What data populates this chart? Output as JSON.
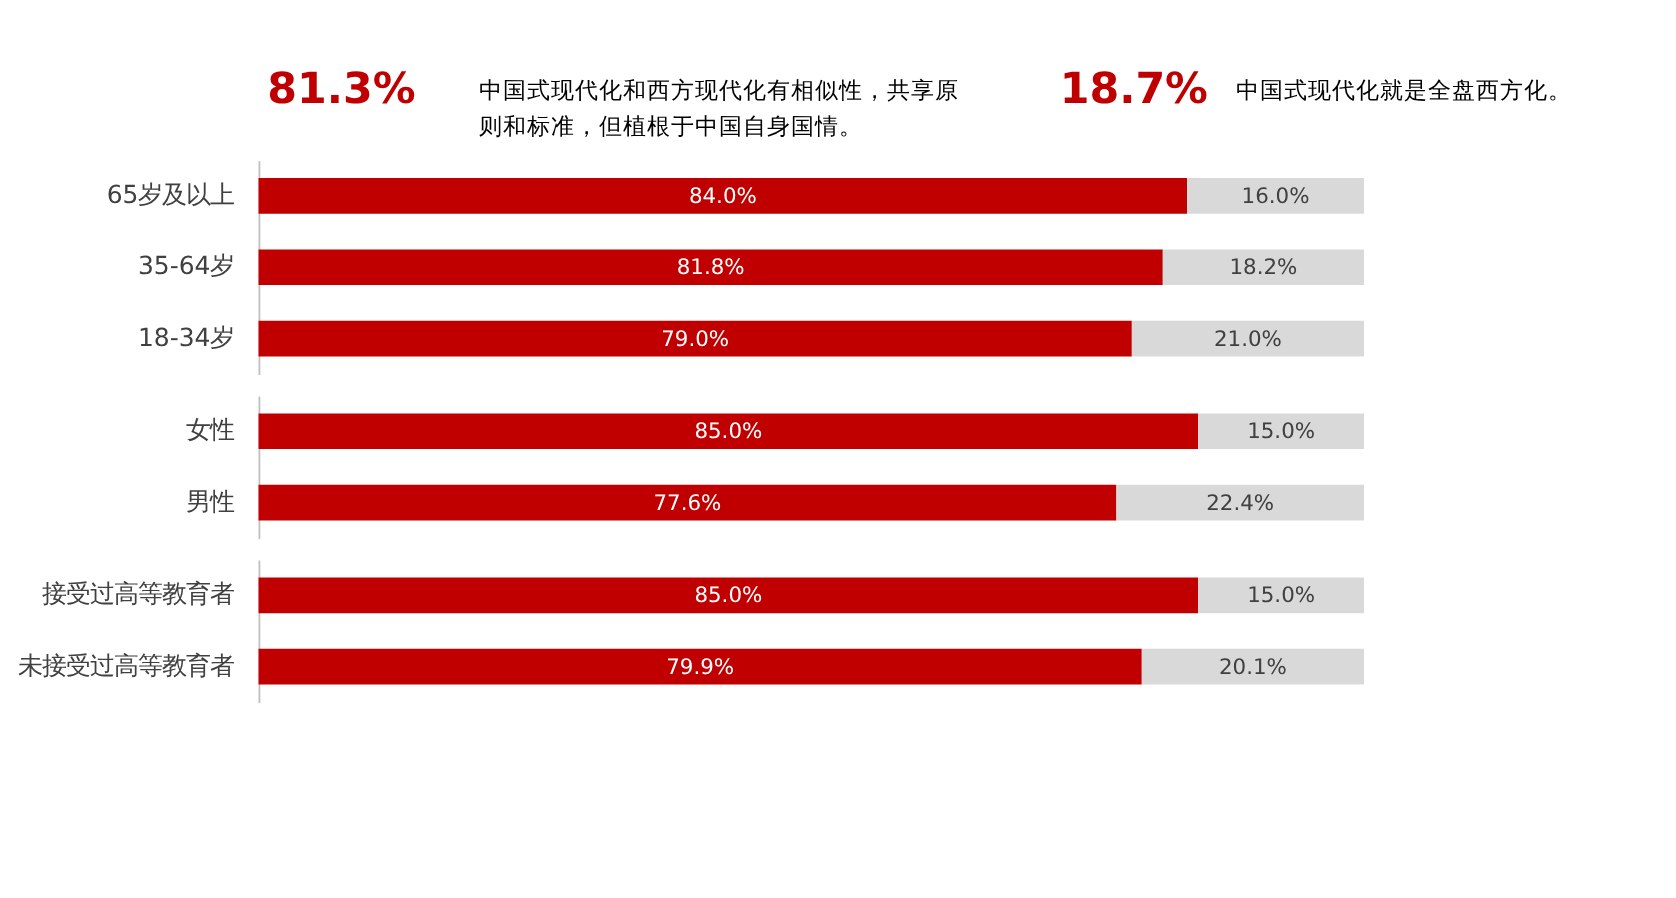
{
  "chart_data": [
    {
      "type": "other",
      "annotations": [
        "81.3%",
        "中国式现代化和西方现代化有相似性，共享原则和标准，但植根于中国自身国情。",
        "18.7%",
        "中国式现代化就是全盘西方化。"
      ]
    },
    {
      "type": "bar",
      "orientation": "horizontal",
      "stacked": true,
      "categories": [
        "65岁及以上",
        "35-64岁",
        "18-34岁"
      ],
      "series": [
        {
          "color": "#c00000",
          "values": [
            84.0,
            81.8,
            79.0
          ],
          "value_labels": [
            "84.0%",
            "81.8%",
            "79.0%"
          ]
        },
        {
          "color": "#d9d9d9",
          "values": [
            16.0,
            18.2,
            21.0
          ],
          "value_labels": [
            "16.0%",
            "18.2%",
            "21.0%"
          ]
        }
      ]
    },
    {
      "type": "bar",
      "orientation": "horizontal",
      "stacked": true,
      "categories": [
        "女性",
        "男性"
      ],
      "series": [
        {
          "color": "#c00000",
          "values": [
            85.0,
            77.6
          ],
          "value_labels": [
            "85.0%",
            "77.6%"
          ]
        },
        {
          "color": "#d9d9d9",
          "values": [
            15.0,
            22.4
          ],
          "value_labels": [
            "15.0%",
            "22.4%"
          ]
        }
      ]
    },
    {
      "type": "bar",
      "orientation": "horizontal",
      "stacked": true,
      "categories": [
        "接受过高等教育者",
        "未接受过高等教育者"
      ],
      "series": [
        {
          "color": "#c00000",
          "values": [
            85.0,
            79.9
          ],
          "value_labels": [
            "85.0%",
            "79.9%"
          ]
        },
        {
          "color": "#d9d9d9",
          "values": [
            15.0,
            20.1
          ],
          "value_labels": [
            "15.0%",
            "20.1%"
          ]
        }
      ]
    }
  ]
}
